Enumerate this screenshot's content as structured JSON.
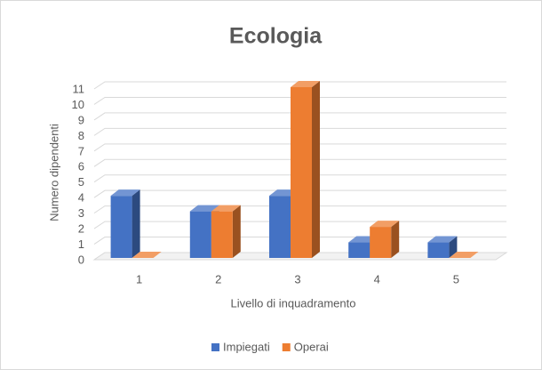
{
  "chart_data": {
    "type": "bar3d",
    "title": "Ecologia",
    "x_label": "Livello di inquadramento",
    "y_label": "Numero dipendenti",
    "categories": [
      "1",
      "2",
      "3",
      "4",
      "5"
    ],
    "series": [
      {
        "name": "Impiegati",
        "color": "#4472c4",
        "values": [
          4,
          3,
          4,
          1,
          1
        ]
      },
      {
        "name": "Operai",
        "color": "#ed7d31",
        "values": [
          0,
          3,
          11,
          2,
          0
        ]
      }
    ],
    "ylim": [
      0,
      11
    ],
    "yticks": [
      0,
      1,
      2,
      3,
      4,
      5,
      6,
      7,
      8,
      9,
      10,
      11
    ],
    "grid": true,
    "legend": "bottom"
  }
}
